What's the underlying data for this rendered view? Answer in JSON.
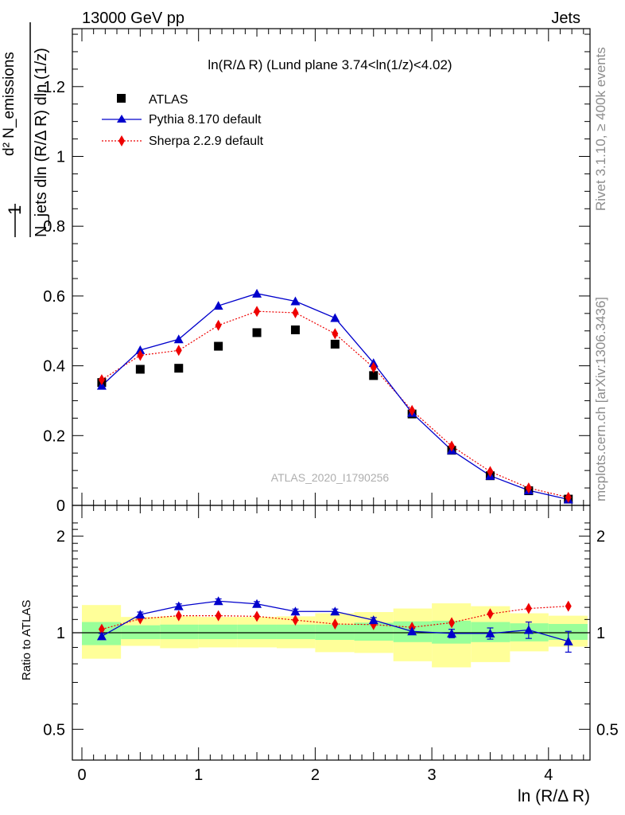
{
  "header": {
    "left": "13000 GeV pp",
    "right": "Jets"
  },
  "plot_title": "ln(R/Δ R) (Lund plane 3.74<ln(1/z)<4.02)",
  "side_labels": {
    "rivet": "Rivet 3.1.10, ≥ 400k events",
    "mcplots": "mcplots.cern.ch [arXiv:1306.3436]"
  },
  "watermark": "ATLAS_2020_I1790256",
  "ylabel_main": {
    "one": "1",
    "denominator": "N_jets dln (R/Δ R) dln (1/z)",
    "numerator": "d² N_emissions"
  },
  "ylabel_ratio": "Ratio to ATLAS",
  "xlabel": "ln (R/Δ R)",
  "colors": {
    "atlas": "#000000",
    "pythia": "#0000cc",
    "sherpa": "#ee0000",
    "band_inner": "#99ff99",
    "band_outer": "#ffff99"
  },
  "chart_data": {
    "type": "scatter",
    "x": [
      0.17,
      0.5,
      0.83,
      1.17,
      1.5,
      1.83,
      2.17,
      2.5,
      2.83,
      3.17,
      3.5,
      3.83,
      4.17
    ],
    "bin_edges": [
      0.0,
      0.335,
      0.67,
      1.0,
      1.335,
      1.67,
      2.0,
      2.335,
      2.67,
      3.0,
      3.335,
      3.67,
      4.0,
      4.335
    ],
    "series": [
      {
        "name": "ATLAS",
        "marker": "square",
        "values": [
          0.352,
          0.39,
          0.393,
          0.456,
          0.495,
          0.503,
          0.462,
          0.372,
          0.262,
          0.158,
          0.085,
          0.042,
          0.018
        ]
      },
      {
        "name": "Pythia 8.170 default",
        "marker": "triangle",
        "line": "solid",
        "values": [
          0.343,
          0.445,
          0.476,
          0.572,
          0.607,
          0.585,
          0.537,
          0.408,
          0.265,
          0.158,
          0.085,
          0.043,
          0.017
        ]
      },
      {
        "name": "Sherpa 2.2.9 default",
        "marker": "diamond",
        "line": "dotted",
        "values": [
          0.36,
          0.43,
          0.444,
          0.516,
          0.556,
          0.552,
          0.492,
          0.395,
          0.272,
          0.17,
          0.097,
          0.05,
          0.023
        ]
      }
    ],
    "xlim": [
      -0.08,
      4.4
    ],
    "ylim": [
      0,
      1.4
    ],
    "yticks": [
      0.2,
      0.4,
      0.6,
      0.8,
      1,
      1.2
    ],
    "y_zero_label": "0",
    "ratio": {
      "ylim_log": [
        0.4,
        2.5
      ],
      "yticks": [
        0.5,
        1,
        2
      ],
      "pythia": [
        0.975,
        1.14,
        1.21,
        1.255,
        1.23,
        1.165,
        1.165,
        1.095,
        1.01,
        0.995,
        0.995,
        1.02,
        0.94
      ],
      "pythia_err": [
        0.02,
        0.02,
        0.02,
        0.02,
        0.02,
        0.02,
        0.02,
        0.02,
        0.02,
        0.03,
        0.04,
        0.06,
        0.07
      ],
      "sherpa": [
        1.025,
        1.105,
        1.13,
        1.13,
        1.125,
        1.095,
        1.065,
        1.06,
        1.04,
        1.075,
        1.145,
        1.19,
        1.21
      ],
      "band_inner": [
        [
          0.915,
          1.08
        ],
        [
          0.955,
          1.055
        ],
        [
          0.955,
          1.06
        ],
        [
          0.955,
          1.06
        ],
        [
          0.955,
          1.06
        ],
        [
          0.955,
          1.06
        ],
        [
          0.95,
          1.06
        ],
        [
          0.945,
          1.075
        ],
        [
          0.935,
          1.085
        ],
        [
          0.925,
          1.09
        ],
        [
          0.935,
          1.08
        ],
        [
          0.94,
          1.07
        ],
        [
          0.95,
          1.065
        ]
      ],
      "band_outer": [
        [
          0.83,
          1.22
        ],
        [
          0.91,
          1.12
        ],
        [
          0.895,
          1.125
        ],
        [
          0.9,
          1.12
        ],
        [
          0.9,
          1.12
        ],
        [
          0.895,
          1.125
        ],
        [
          0.87,
          1.15
        ],
        [
          0.865,
          1.16
        ],
        [
          0.815,
          1.19
        ],
        [
          0.78,
          1.235
        ],
        [
          0.81,
          1.21
        ],
        [
          0.875,
          1.15
        ],
        [
          0.905,
          1.13
        ]
      ]
    },
    "xticks": [
      0,
      1,
      2,
      3,
      4
    ]
  }
}
